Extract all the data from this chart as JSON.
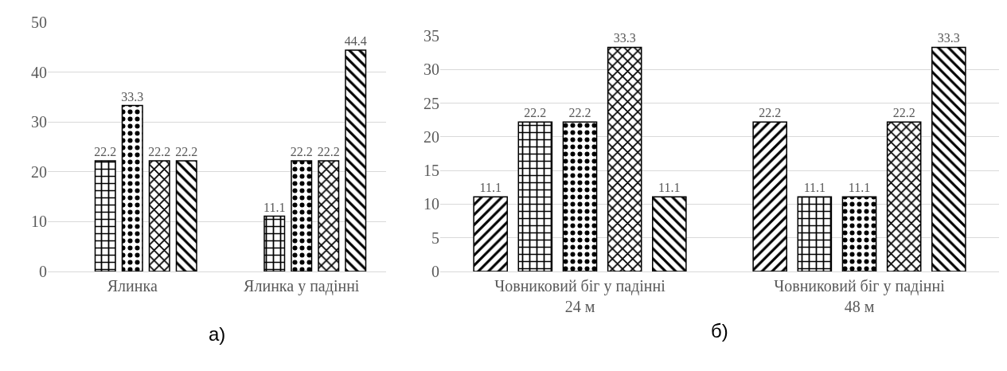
{
  "chart_data": [
    {
      "type": "bar",
      "categories": [
        "Ялинка",
        "Ялинка у падінні"
      ],
      "series": [
        {
          "color": "#000000",
          "values": [
            null,
            null
          ]
        },
        {
          "color": "#000000",
          "values": [
            22.2,
            11.1
          ]
        },
        {
          "color": "#000000",
          "values": [
            33.3,
            22.2
          ]
        },
        {
          "color": "#000000",
          "values": [
            22.2,
            22.2
          ]
        },
        {
          "color": "#000000",
          "values": [
            22.2,
            44.4
          ]
        }
      ],
      "ylim": [
        0,
        50
      ],
      "yticks": [
        0,
        10,
        20,
        30,
        40,
        50
      ],
      "grid": "y",
      "data_labels": true,
      "annotations": [
        "а)"
      ]
    },
    {
      "type": "bar",
      "categories": [
        "Човниковий біг у падінні 24 м",
        "Човниковий біг у падінні 48 м"
      ],
      "series": [
        {
          "color": "#000000",
          "values": [
            11.1,
            22.2
          ]
        },
        {
          "color": "#000000",
          "values": [
            22.2,
            11.1
          ]
        },
        {
          "color": "#000000",
          "values": [
            22.2,
            11.1
          ]
        },
        {
          "color": "#000000",
          "values": [
            33.3,
            22.2
          ]
        },
        {
          "color": "#000000",
          "values": [
            11.1,
            33.3
          ]
        }
      ],
      "ylim": [
        0,
        35
      ],
      "yticks": [
        0,
        5,
        10,
        15,
        20,
        25,
        30,
        35
      ],
      "grid": "y",
      "data_labels": true,
      "annotations": [
        "б)"
      ]
    }
  ]
}
